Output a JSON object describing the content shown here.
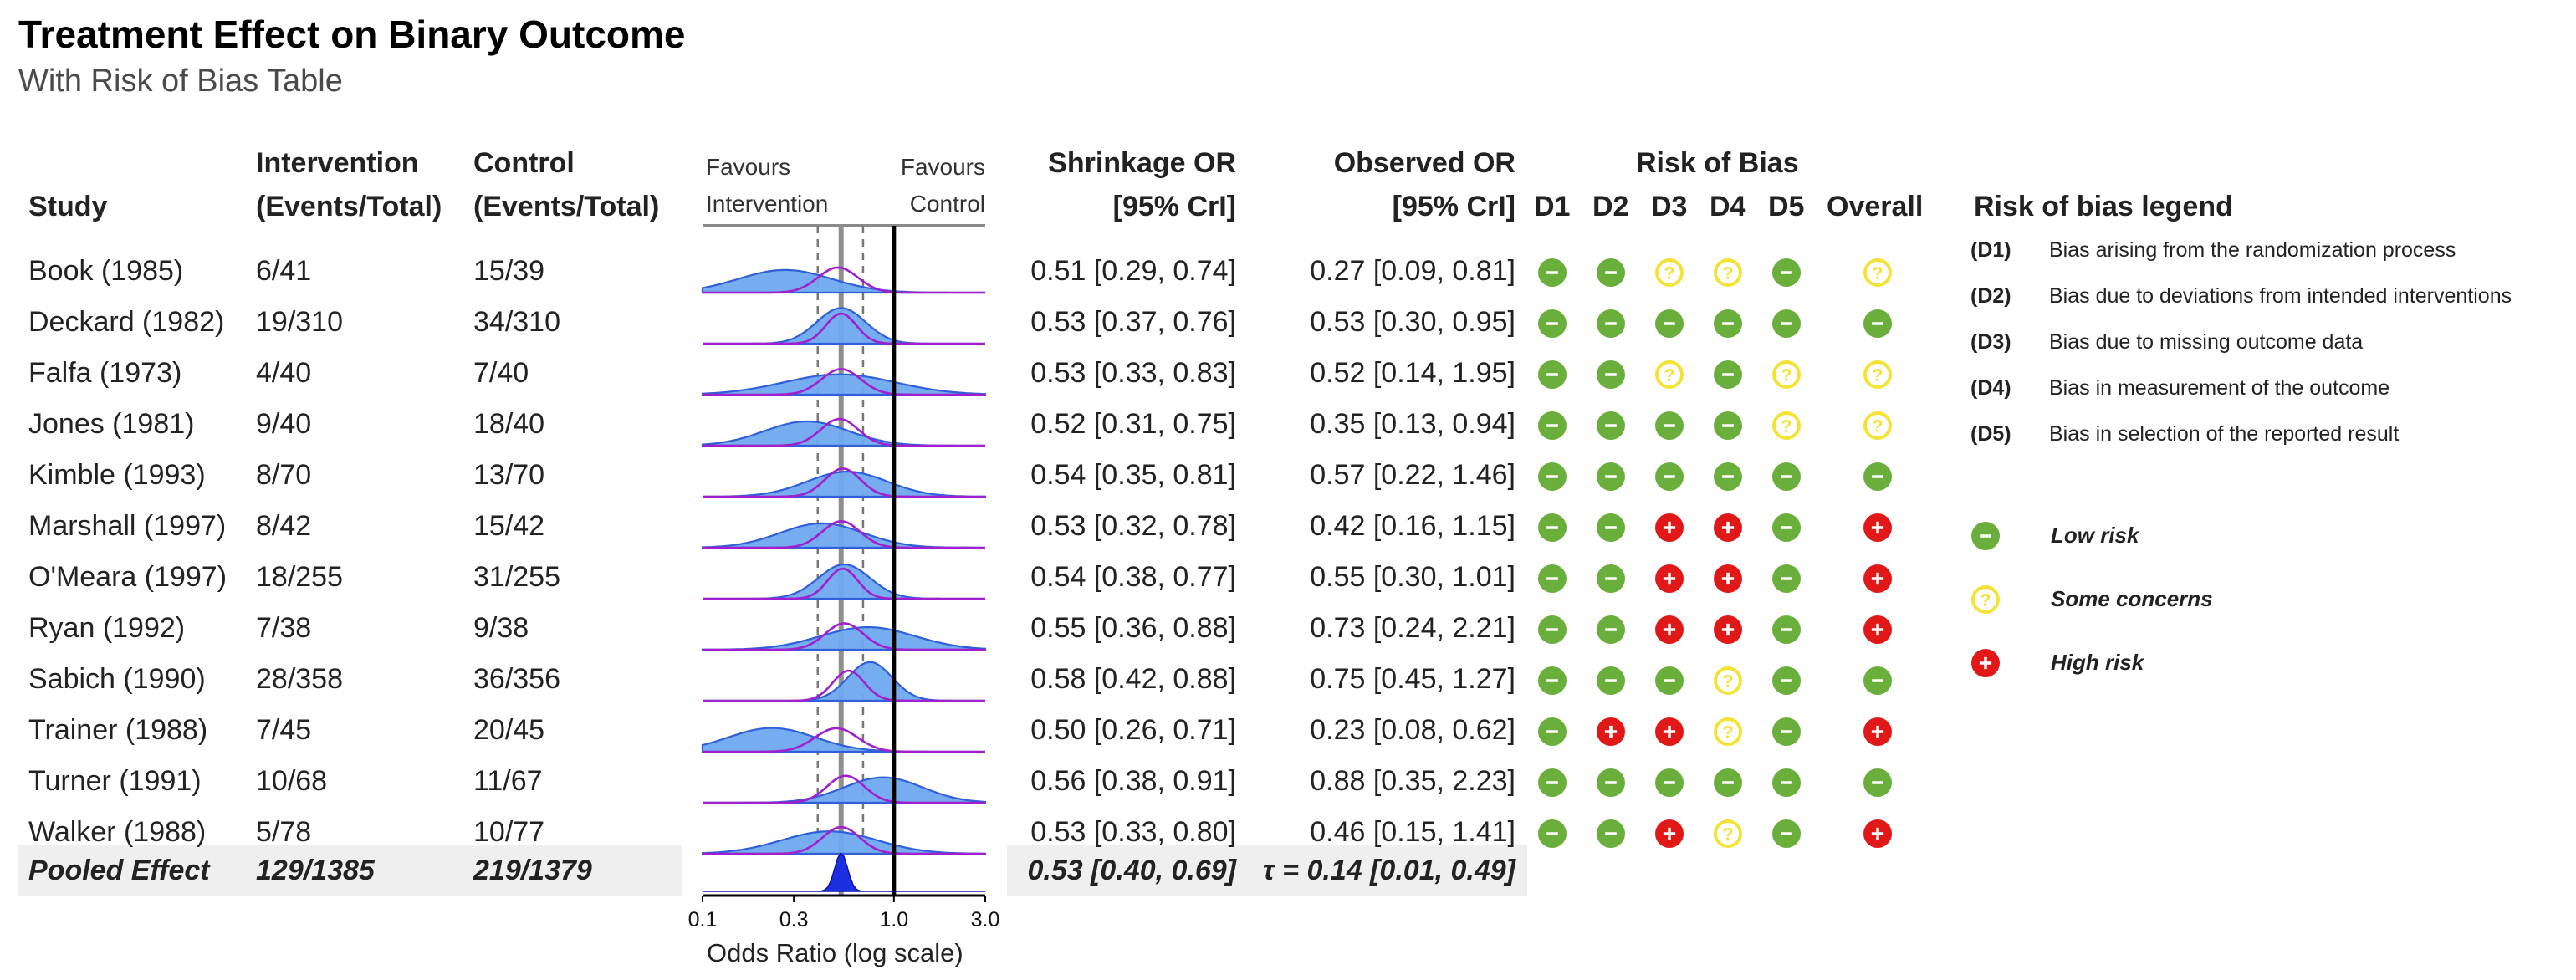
{
  "title": "Treatment Effect on Binary Outcome",
  "subtitle": "With Risk of Bias Table",
  "headers": {
    "study": "Study",
    "intervention_l1": "Intervention",
    "intervention_l2": "(Events/Total)",
    "control_l1": "Control",
    "control_l2": "(Events/Total)",
    "shrink_l1": "Shrinkage OR",
    "shrink_l2": "[95% CrI]",
    "obs_l1": "Observed OR",
    "obs_l2": "[95% CrI]",
    "rob": "Risk of Bias",
    "d1": "D1",
    "d2": "D2",
    "d3": "D3",
    "d4": "D4",
    "d5": "D5",
    "overall": "Overall"
  },
  "forest": {
    "favours_left_l1": "Favours",
    "favours_left_l2": "Intervention",
    "favours_right_l1": "Favours",
    "favours_right_l2": "Control",
    "x_label": "Odds Ratio (log scale)",
    "x_ticks": [
      "0.1",
      "0.3",
      "1.0",
      "3.0"
    ]
  },
  "chart_data": {
    "type": "forest",
    "x_scale": "log",
    "xlim": [
      0.1,
      3.0
    ],
    "x_ticks": [
      0.1,
      0.3,
      1.0,
      3.0
    ],
    "reference_line": 1.0,
    "pooled_or": 0.53,
    "pooled_ci": [
      0.4,
      0.69
    ],
    "studies": [
      {
        "study": "Book (1985)",
        "intervention": "6/41",
        "control": "15/39",
        "shrinkage": "0.51 [0.29, 0.74]",
        "observed": "0.27 [0.09, 0.81]",
        "shr_or": 0.51,
        "shr_lo": 0.29,
        "shr_hi": 0.74,
        "obs_or": 0.27,
        "obs_lo": 0.09,
        "obs_hi": 0.81,
        "rob": [
          "low",
          "low",
          "some",
          "some",
          "low"
        ],
        "overall": "some"
      },
      {
        "study": "Deckard (1982)",
        "intervention": "19/310",
        "control": "34/310",
        "shrinkage": "0.53 [0.37, 0.76]",
        "observed": "0.53 [0.30, 0.95]",
        "shr_or": 0.53,
        "shr_lo": 0.37,
        "shr_hi": 0.76,
        "obs_or": 0.53,
        "obs_lo": 0.3,
        "obs_hi": 0.95,
        "rob": [
          "low",
          "low",
          "low",
          "low",
          "low"
        ],
        "overall": "low"
      },
      {
        "study": "Falfa (1973)",
        "intervention": "4/40",
        "control": "7/40",
        "shrinkage": "0.53 [0.33, 0.83]",
        "observed": "0.52 [0.14, 1.95]",
        "shr_or": 0.53,
        "shr_lo": 0.33,
        "shr_hi": 0.83,
        "obs_or": 0.52,
        "obs_lo": 0.14,
        "obs_hi": 1.95,
        "rob": [
          "low",
          "low",
          "some",
          "low",
          "some"
        ],
        "overall": "some"
      },
      {
        "study": "Jones (1981)",
        "intervention": "9/40",
        "control": "18/40",
        "shrinkage": "0.52 [0.31, 0.75]",
        "observed": "0.35 [0.13, 0.94]",
        "shr_or": 0.52,
        "shr_lo": 0.31,
        "shr_hi": 0.75,
        "obs_or": 0.35,
        "obs_lo": 0.13,
        "obs_hi": 0.94,
        "rob": [
          "low",
          "low",
          "low",
          "low",
          "some"
        ],
        "overall": "some"
      },
      {
        "study": "Kimble (1993)",
        "intervention": "8/70",
        "control": "13/70",
        "shrinkage": "0.54 [0.35, 0.81]",
        "observed": "0.57 [0.22, 1.46]",
        "shr_or": 0.54,
        "shr_lo": 0.35,
        "shr_hi": 0.81,
        "obs_or": 0.57,
        "obs_lo": 0.22,
        "obs_hi": 1.46,
        "rob": [
          "low",
          "low",
          "low",
          "low",
          "low"
        ],
        "overall": "low"
      },
      {
        "study": "Marshall (1997)",
        "intervention": "8/42",
        "control": "15/42",
        "shrinkage": "0.53 [0.32, 0.78]",
        "observed": "0.42 [0.16, 1.15]",
        "shr_or": 0.53,
        "shr_lo": 0.32,
        "shr_hi": 0.78,
        "obs_or": 0.42,
        "obs_lo": 0.16,
        "obs_hi": 1.15,
        "rob": [
          "low",
          "low",
          "high",
          "high",
          "low"
        ],
        "overall": "high"
      },
      {
        "study": "O'Meara (1997)",
        "intervention": "18/255",
        "control": "31/255",
        "shrinkage": "0.54 [0.38, 0.77]",
        "observed": "0.55 [0.30, 1.01]",
        "shr_or": 0.54,
        "shr_lo": 0.38,
        "shr_hi": 0.77,
        "obs_or": 0.55,
        "obs_lo": 0.3,
        "obs_hi": 1.01,
        "rob": [
          "low",
          "low",
          "high",
          "high",
          "low"
        ],
        "overall": "high"
      },
      {
        "study": "Ryan (1992)",
        "intervention": "7/38",
        "control": "9/38",
        "shrinkage": "0.55 [0.36, 0.88]",
        "observed": "0.73 [0.24, 2.21]",
        "shr_or": 0.55,
        "shr_lo": 0.36,
        "shr_hi": 0.88,
        "obs_or": 0.73,
        "obs_lo": 0.24,
        "obs_hi": 2.21,
        "rob": [
          "low",
          "low",
          "high",
          "high",
          "low"
        ],
        "overall": "high"
      },
      {
        "study": "Sabich (1990)",
        "intervention": "28/358",
        "control": "36/356",
        "shrinkage": "0.58 [0.42, 0.88]",
        "observed": "0.75 [0.45, 1.27]",
        "shr_or": 0.58,
        "shr_lo": 0.42,
        "shr_hi": 0.88,
        "obs_or": 0.75,
        "obs_lo": 0.45,
        "obs_hi": 1.27,
        "rob": [
          "low",
          "low",
          "low",
          "some",
          "low"
        ],
        "overall": "low"
      },
      {
        "study": "Trainer (1988)",
        "intervention": "7/45",
        "control": "20/45",
        "shrinkage": "0.50 [0.26, 0.71]",
        "observed": "0.23 [0.08, 0.62]",
        "shr_or": 0.5,
        "shr_lo": 0.26,
        "shr_hi": 0.71,
        "obs_or": 0.23,
        "obs_lo": 0.08,
        "obs_hi": 0.62,
        "rob": [
          "low",
          "high",
          "high",
          "some",
          "low"
        ],
        "overall": "high"
      },
      {
        "study": "Turner (1991)",
        "intervention": "10/68",
        "control": "11/67",
        "shrinkage": "0.56 [0.38, 0.91]",
        "observed": "0.88 [0.35, 2.23]",
        "shr_or": 0.56,
        "shr_lo": 0.38,
        "shr_hi": 0.91,
        "obs_or": 0.88,
        "obs_lo": 0.35,
        "obs_hi": 2.23,
        "rob": [
          "low",
          "low",
          "low",
          "low",
          "low"
        ],
        "overall": "low"
      },
      {
        "study": "Walker (1988)",
        "intervention": "5/78",
        "control": "10/77",
        "shrinkage": "0.53 [0.33, 0.80]",
        "observed": "0.46 [0.15, 1.41]",
        "shr_or": 0.53,
        "shr_lo": 0.33,
        "shr_hi": 0.8,
        "obs_or": 0.46,
        "obs_lo": 0.15,
        "obs_hi": 1.41,
        "rob": [
          "low",
          "low",
          "high",
          "some",
          "low"
        ],
        "overall": "high"
      }
    ],
    "pooled": {
      "study": "Pooled Effect",
      "intervention": "129/1385",
      "control": "219/1379",
      "shrinkage": "0.53 [0.40, 0.69]",
      "tau": "τ = 0.14 [0.01, 0.49]"
    }
  },
  "rob_legend": {
    "title": "Risk of bias legend",
    "domains": [
      {
        "code": "(D1)",
        "text": "Bias arising from the randomization process"
      },
      {
        "code": "(D2)",
        "text": "Bias due to deviations from intended interventions"
      },
      {
        "code": "(D3)",
        "text": "Bias due to missing outcome data"
      },
      {
        "code": "(D4)",
        "text": "Bias in measurement of the outcome"
      },
      {
        "code": "(D5)",
        "text": "Bias in selection of the reported result"
      }
    ],
    "levels": [
      {
        "key": "low",
        "label": "Low risk"
      },
      {
        "key": "some",
        "label": "Some concerns"
      },
      {
        "key": "high",
        "label": "High risk"
      }
    ]
  },
  "colors": {
    "low": "#6aaf3c",
    "some": "#f3e335",
    "high": "#e01818",
    "density_fill": "#6fa8ef",
    "density_line": "#2f5fd9",
    "shrinkage_line": "#a020d0",
    "pooled_fill": "#1a2fe0"
  },
  "icons": {
    "low": "minus-icon",
    "some": "question-icon",
    "high": "plus-icon"
  }
}
